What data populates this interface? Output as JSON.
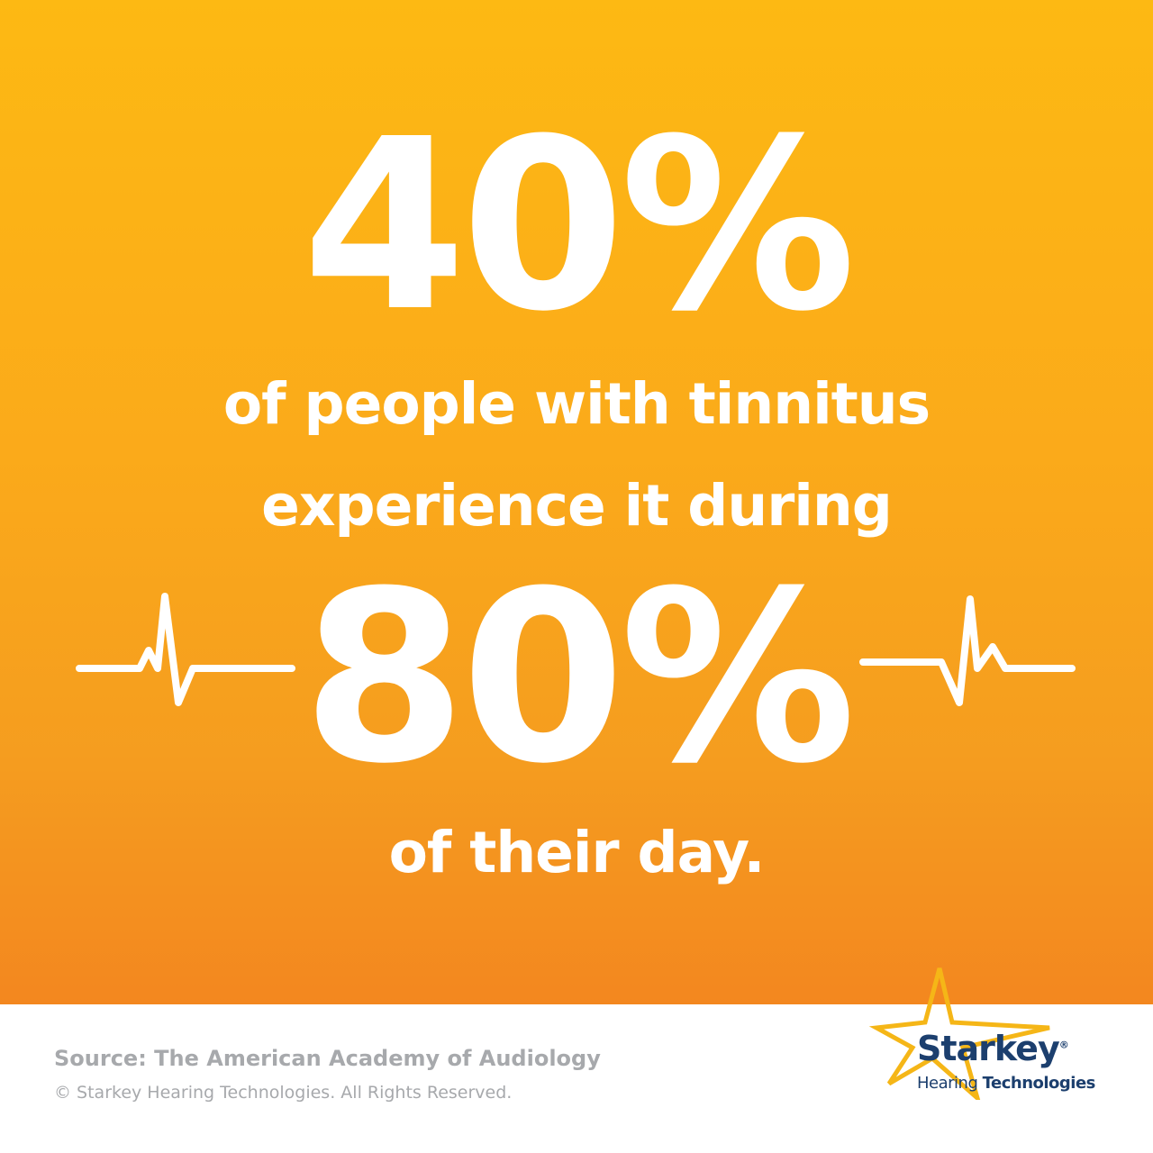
{
  "headline": {
    "stat_1": "40%",
    "line_1": "of people with tinnitus",
    "line_2": "experience it during",
    "stat_2": "80%",
    "line_3": "of their day."
  },
  "footer": {
    "source": "Source: The American Academy of Audiology",
    "copyright": "© Starkey Hearing Technologies. All Rights Reserved."
  },
  "logo": {
    "brand": "Starkey",
    "registered": "®",
    "tagline_regular": "Hearing",
    "tagline_bold": "Technologies"
  },
  "icons": [
    "heartbeat-line-icon",
    "star-icon"
  ],
  "colors": {
    "background_top": "#fdb913",
    "background_bottom": "#f3871f",
    "text": "#ffffff",
    "footer_text": "#a7a9ac",
    "brand_navy": "#1c3f6e",
    "star_gold": "#f5b617"
  }
}
